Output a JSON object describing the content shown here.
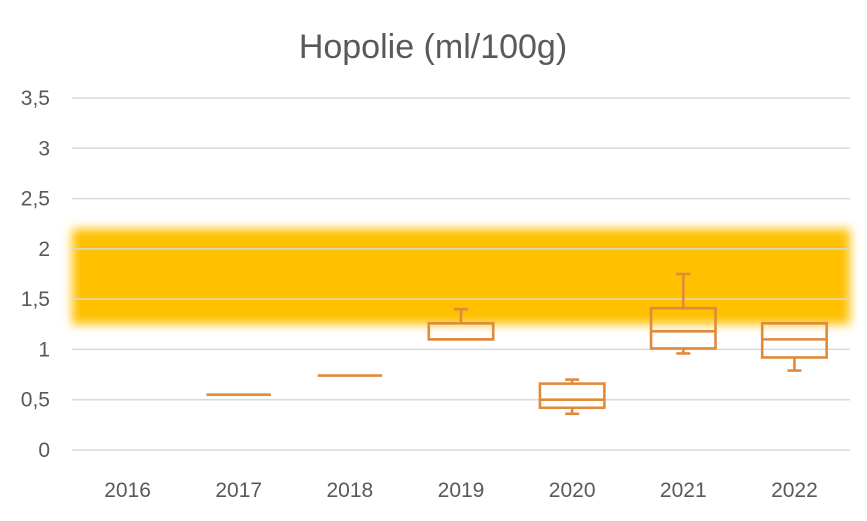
{
  "chart_data": {
    "type": "box",
    "title": "Hopolie (ml/100g)",
    "xlabel": "",
    "ylabel": "",
    "categories": [
      "2016",
      "2017",
      "2018",
      "2019",
      "2020",
      "2021",
      "2022"
    ],
    "y_tick_labels": [
      "0",
      "0,5",
      "1",
      "1,5",
      "2",
      "2,5",
      "3",
      "3,5"
    ],
    "y_ticks": [
      0,
      0.5,
      1,
      1.5,
      2,
      2.5,
      3,
      3.5
    ],
    "ylim": [
      0,
      3.5
    ],
    "grid": true,
    "reference_band": {
      "from": 1.25,
      "to": 2.2,
      "color": "#FFC000"
    },
    "box_color": "#E08A3C",
    "series": [
      {
        "category": "2016",
        "min": null,
        "q1": null,
        "median": null,
        "q3": null,
        "max": null
      },
      {
        "category": "2017",
        "min": 0.55,
        "q1": 0.55,
        "median": 0.55,
        "q3": 0.55,
        "max": 0.55
      },
      {
        "category": "2018",
        "min": 0.74,
        "q1": 0.74,
        "median": 0.74,
        "q3": 0.74,
        "max": 0.74
      },
      {
        "category": "2019",
        "min": 1.1,
        "q1": 1.1,
        "median": 1.1,
        "q3": 1.26,
        "max": 1.4
      },
      {
        "category": "2020",
        "min": 0.36,
        "q1": 0.42,
        "median": 0.5,
        "q3": 0.66,
        "max": 0.7
      },
      {
        "category": "2021",
        "min": 0.96,
        "q1": 1.01,
        "median": 1.18,
        "q3": 1.41,
        "max": 1.75
      },
      {
        "category": "2022",
        "min": 0.79,
        "q1": 0.92,
        "median": 1.1,
        "q3": 1.26,
        "max": 1.26
      }
    ]
  }
}
